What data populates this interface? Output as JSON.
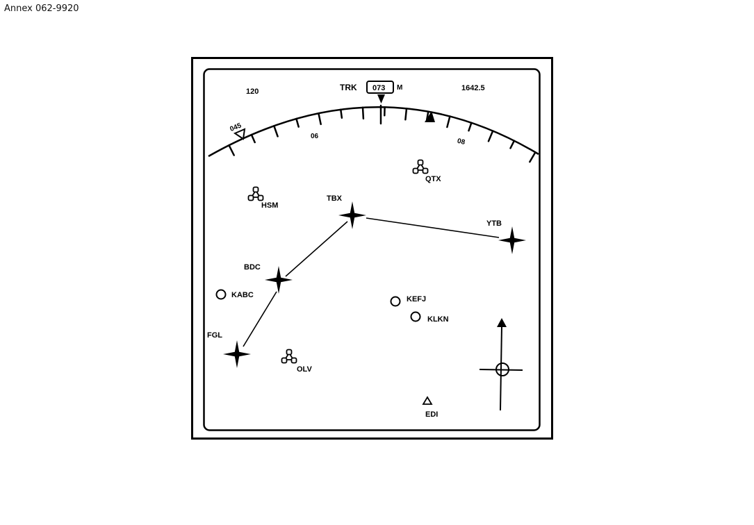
{
  "annex_label": "Annex 062-9920",
  "header": {
    "range": "120",
    "trk_label": "TRK",
    "track_value": "073",
    "mag_ref": "M",
    "distance": "1642.5"
  },
  "arc": {
    "heading_bug": "045",
    "scale_left": "06",
    "scale_right": "08"
  },
  "waypoints": {
    "tbx": "TBX",
    "ytb": "YTB",
    "bdc": "BDC",
    "fgl": "FGL"
  },
  "navaids": {
    "hsm": "HSM",
    "qtx": "QTX",
    "olv": "OLV"
  },
  "airports": {
    "kabc": "KABC",
    "kefj": "KEFJ",
    "klkn": "KLKN"
  },
  "ndb": {
    "edi": "EDI"
  }
}
